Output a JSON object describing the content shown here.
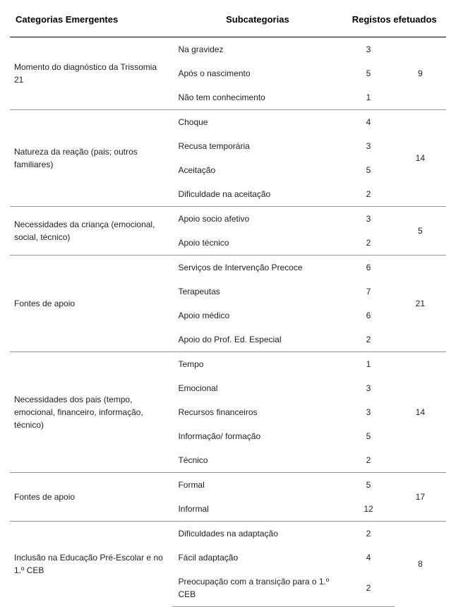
{
  "headers": {
    "col1": "Categorias Emergentes",
    "col2": "Subcategorias",
    "col3": "Registos efetuados"
  },
  "sections": [
    {
      "category": "Momento do diagnóstico da Trissomia 21",
      "total": "9",
      "rows": [
        {
          "label": "Na gravidez",
          "count": "3"
        },
        {
          "label": "Após o nascimento",
          "count": "5"
        },
        {
          "label": "Não tem conhecimento",
          "count": "1"
        }
      ]
    },
    {
      "category": "Natureza da reação (pais; outros familiares)",
      "total": "14",
      "rows": [
        {
          "label": "Choque",
          "count": "4"
        },
        {
          "label": "Recusa temporária",
          "count": "3"
        },
        {
          "label": "Aceitação",
          "count": "5"
        },
        {
          "label": "Dificuldade na aceitação",
          "count": "2"
        }
      ]
    },
    {
      "category": "Necessidades da criança (emocional, social, técnico)",
      "total": "5",
      "rows": [
        {
          "label": "Apoio socio afetivo",
          "count": "3"
        },
        {
          "label": "Apoio técnico",
          "count": "2"
        }
      ]
    },
    {
      "category": "Fontes de apoio",
      "total": "21",
      "rows": [
        {
          "label": "Serviços de Intervenção Precoce",
          "count": "6"
        },
        {
          "label": "Terapeutas",
          "count": "7"
        },
        {
          "label": "Apoio médico",
          "count": "6"
        },
        {
          "label": "Apoio do Prof. Ed. Especial",
          "count": "2"
        }
      ]
    },
    {
      "category": "Necessidades dos pais (tempo, emocional, financeiro, informação, técnico)",
      "total": "14",
      "rows": [
        {
          "label": "Tempo",
          "count": "1"
        },
        {
          "label": "Emocional",
          "count": "3"
        },
        {
          "label": "Recursos financeiros",
          "count": "3"
        },
        {
          "label": "Informação/ formação",
          "count": "5"
        },
        {
          "label": "Técnico",
          "count": "2"
        }
      ]
    },
    {
      "category": "Fontes de apoio",
      "total": "17",
      "rows": [
        {
          "label": "Formal",
          "count": "5"
        },
        {
          "label": "Informal",
          "count": "12"
        }
      ]
    },
    {
      "category": "Inclusão na Educação Pré-Escolar e no 1.º CEB",
      "total": "8",
      "rows": [
        {
          "label": "Dificuldades na adaptação",
          "count": "2"
        },
        {
          "label": "Fácil adaptação",
          "count": "4"
        },
        {
          "label": "Preocupação com a transição para o 1.º CEB",
          "count": "2"
        }
      ]
    }
  ]
}
